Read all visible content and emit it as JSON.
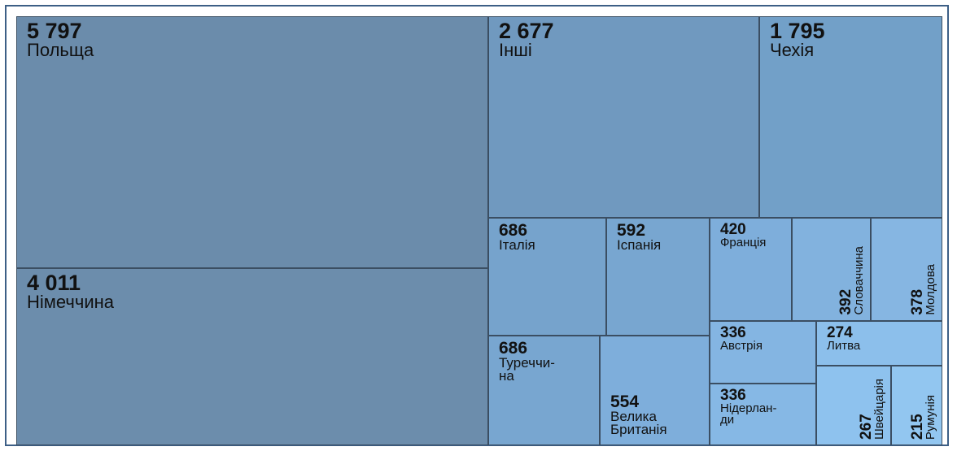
{
  "chart_data": {
    "type": "treemap",
    "categories": [
      "Польща",
      "Німеччина",
      "Інші",
      "Чехія",
      "Італія",
      "Іспанія",
      "Франція",
      "Словаччина",
      "Молдова",
      "Туреччи-\nна",
      "Велика\nБританія",
      "Австрія",
      "Литва",
      "Нідерлан-\nди",
      "Швейцарія",
      "Румунія"
    ],
    "values": [
      5797,
      4011,
      2677,
      1795,
      686,
      592,
      420,
      392,
      378,
      686,
      554,
      336,
      274,
      336,
      267,
      215
    ],
    "value_labels": [
      "5 797",
      "4 011",
      "2 677",
      "1 795",
      "686",
      "592",
      "420",
      "392",
      "378",
      "686",
      "554",
      "336",
      "274",
      "336",
      "267",
      "215"
    ],
    "colors": [
      "#6b8cab",
      "#6c8dac",
      "#7099bf",
      "#72a0c8",
      "#76a3cc",
      "#78a6d0",
      "#7eaedb",
      "#82b2de",
      "#86b6e2",
      "#78a6d0",
      "#7eaedb",
      "#84b5e2",
      "#8cbfeb",
      "#86b8e5",
      "#8ec2ee",
      "#92c6f0"
    ]
  }
}
